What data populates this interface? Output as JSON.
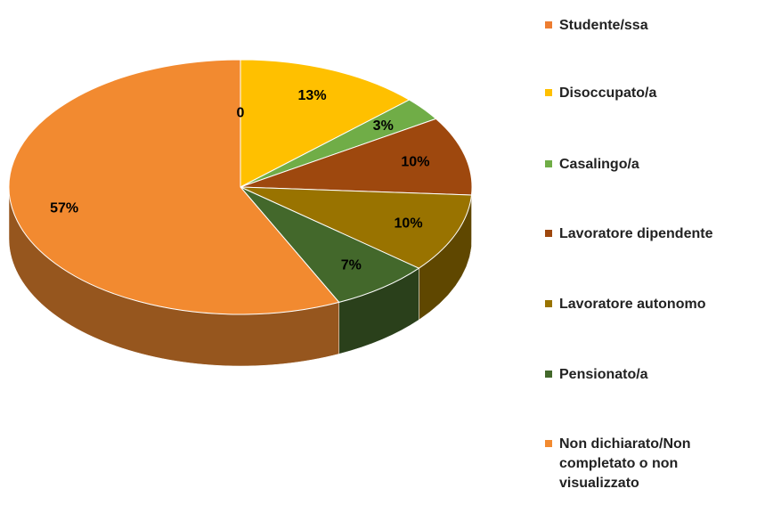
{
  "chart_data": {
    "type": "pie",
    "categories": [
      "Studente/ssa",
      "Disoccupato/a",
      "Casalingo/a",
      "Lavoratore dipendente",
      "Lavoratore autonomo",
      "Pensionato/a",
      "Non dichiarato/Non completato o non visualizzato"
    ],
    "values": [
      0,
      13,
      3,
      10,
      10,
      7,
      57
    ],
    "value_labels": [
      "0",
      "13%",
      "3%",
      "10%",
      "10%",
      "7%",
      "57%"
    ],
    "colors": [
      "#ed7d31",
      "#ffc000",
      "#70ad47",
      "#9e480e",
      "#997300",
      "#43682b",
      "#f28a30"
    ],
    "legend": "right"
  }
}
